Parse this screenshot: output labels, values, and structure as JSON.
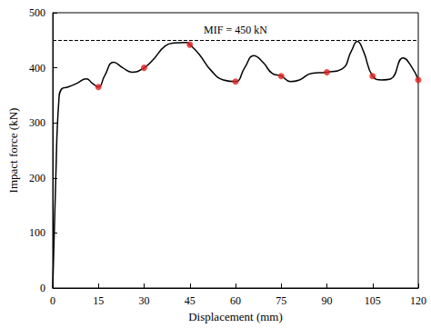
{
  "chart_data": {
    "type": "line",
    "x_label": "Displacement (mm)",
    "y_label": "Impact force (kN)",
    "xlim": [
      0,
      120
    ],
    "xticks": [
      0,
      15,
      30,
      45,
      60,
      75,
      90,
      105,
      120
    ],
    "ylim": [
      0,
      500
    ],
    "yticks": [
      0,
      100,
      200,
      300,
      400,
      500
    ],
    "grid": false,
    "series": [
      {
        "type": "line",
        "color": "#000000",
        "x": [
          0,
          1,
          2,
          3,
          5,
          8,
          11,
          13,
          15,
          17,
          20,
          23,
          26,
          30,
          33,
          37,
          40,
          44,
          45,
          48,
          52,
          56,
          60,
          63,
          66,
          69,
          72,
          75,
          78,
          81,
          85,
          90,
          95,
          98,
          100,
          102,
          105,
          108,
          111,
          115,
          118,
          120
        ],
        "values": [
          0,
          200,
          340,
          362,
          365,
          372,
          380,
          372,
          365,
          385,
          410,
          400,
          392,
          400,
          415,
          440,
          445,
          446,
          442,
          425,
          395,
          378,
          375,
          400,
          422,
          410,
          390,
          385,
          375,
          378,
          390,
          392,
          398,
          430,
          448,
          430,
          385,
          378,
          380,
          418,
          400,
          378
        ]
      },
      {
        "type": "scatter",
        "color": "#e02020",
        "marker": "circle",
        "x": [
          15,
          30,
          45,
          60,
          75,
          90,
          105,
          120
        ],
        "values": [
          365,
          400,
          442,
          375,
          385,
          392,
          385,
          378
        ]
      }
    ],
    "annotations": [
      {
        "text": "MIF = 450 kN",
        "y": 450,
        "line_style": "dashed"
      }
    ]
  }
}
